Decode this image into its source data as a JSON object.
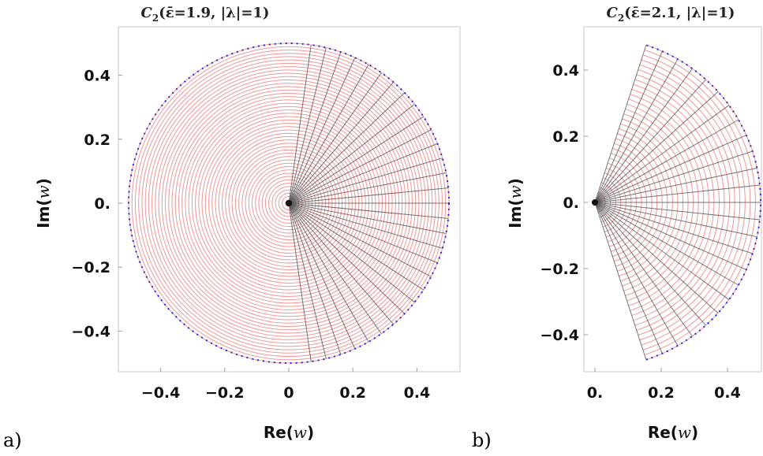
{
  "panel_a": {
    "tag": "a)",
    "title_main": "C",
    "title_sub": "2",
    "title_rest": "(ε̄=1.9, |λ|=1)",
    "xlabel_pre": "Re(",
    "xlabel_var": "w",
    "xlabel_post": ")",
    "ylabel_pre": "Im(",
    "ylabel_var": "w",
    "ylabel_post": ")",
    "xticks": [
      "−0.4",
      "−0.2",
      "0",
      "0.2",
      "0.4"
    ],
    "yticks": [
      "0.4",
      "0.2",
      "0.",
      "−0.2",
      "−0.4"
    ]
  },
  "panel_b": {
    "tag": "b)",
    "title_main": "C",
    "title_sub": "2",
    "title_rest": "(ε̄=2.1, |λ|=1)",
    "xlabel_pre": "Re(",
    "xlabel_var": "w",
    "xlabel_post": ")",
    "ylabel_pre": "Im(",
    "ylabel_var": "w",
    "ylabel_post": ")",
    "xticks": [
      "0.",
      "0.2",
      "0.4"
    ],
    "yticks": [
      "0.4",
      "0.2",
      "0.",
      "−0.2",
      "−0.4"
    ]
  },
  "chart_data": [
    {
      "type": "scatter",
      "description_shape": "full disk, radius 0.5, centered at origin",
      "radius": 0.5,
      "angle_range_deg": [
        -180,
        180
      ],
      "rays_angle_range_deg": [
        -82,
        82
      ],
      "ray_count": 31,
      "ring_count": 48,
      "xlim": [
        -0.55,
        0.52
      ],
      "ylim": [
        -0.52,
        0.52
      ],
      "colors": {
        "rings": "#f08c8c",
        "rays": "#555555",
        "boundary": "#1a2ee0"
      }
    },
    {
      "type": "scatter",
      "description_shape": "circular sector, radius 0.5, opening ±72°",
      "radius": 0.5,
      "angle_range_deg": [
        -72,
        72
      ],
      "rays_angle_range_deg": [
        -72,
        72
      ],
      "ray_count": 25,
      "ring_count": 32,
      "xlim": [
        -0.02,
        0.52
      ],
      "ylim": [
        -0.54,
        0.54
      ],
      "colors": {
        "rings": "#f08c8c",
        "rays": "#555555",
        "boundary": "#1a2ee0"
      }
    }
  ]
}
